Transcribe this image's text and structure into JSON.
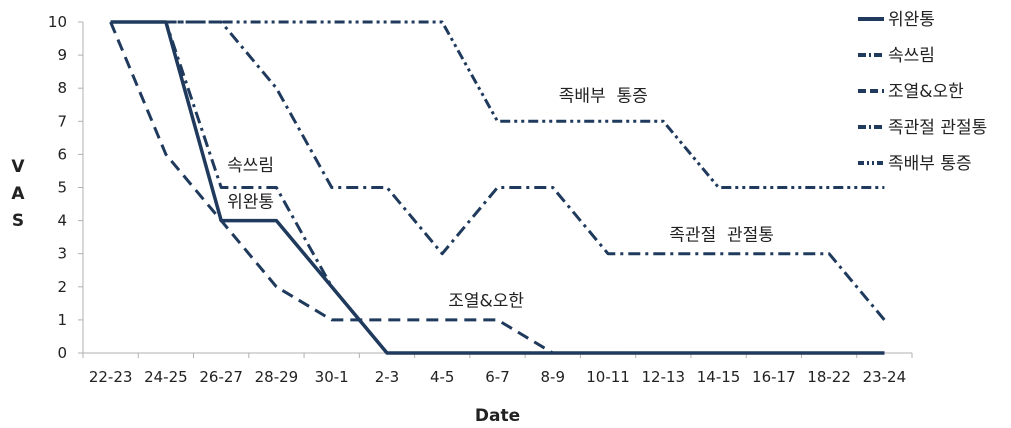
{
  "chart_data": {
    "type": "line",
    "xlabel": "Date",
    "ylabel": "V A S",
    "ylim": [
      0,
      10
    ],
    "yticks": [
      0,
      1,
      2,
      3,
      4,
      5,
      6,
      7,
      8,
      9,
      10
    ],
    "categories": [
      "22-23",
      "24-25",
      "26-27",
      "28-29",
      "30-1",
      "2-3",
      "4-5",
      "6-7",
      "8-9",
      "10-11",
      "12-13",
      "14-15",
      "16-17",
      "18-22",
      "23-24"
    ],
    "grid": false,
    "legend_position": "right",
    "color": "#1f3a5c",
    "series": [
      {
        "name": "위완통",
        "style": "solid",
        "values": [
          10,
          10,
          4,
          4,
          2,
          0,
          0,
          0,
          0,
          0,
          0,
          0,
          0,
          0,
          0
        ]
      },
      {
        "name": "속쓰림",
        "style": "dashdot",
        "values": [
          10,
          10,
          5,
          5,
          2,
          0,
          0,
          0,
          0,
          0,
          0,
          0,
          0,
          0,
          0
        ]
      },
      {
        "name": "조열&오한",
        "style": "dashed",
        "values": [
          10,
          6,
          4,
          2,
          1,
          1,
          1,
          1,
          0,
          0,
          0,
          0,
          0,
          0,
          0
        ]
      },
      {
        "name": "족관절 관절통",
        "style": "dashdot",
        "values": [
          10,
          10,
          10,
          8,
          5,
          5,
          3,
          5,
          5,
          3,
          3,
          3,
          3,
          3,
          1
        ]
      },
      {
        "name": "족배부 통증",
        "style": "dashdotdot",
        "values": [
          10,
          10,
          10,
          10,
          10,
          10,
          10,
          7,
          7,
          7,
          7,
          5,
          5,
          5,
          5
        ]
      }
    ],
    "legend_entries": [
      "위완통",
      "속쓰림",
      "조열&오한",
      "족관절 관절통",
      "족배부 통증"
    ],
    "annotations": [
      {
        "text": "족배부  통증",
        "x": "8-9",
        "y": 7.6
      },
      {
        "text": "속쓰림",
        "x": "26-27",
        "y": 5.5
      },
      {
        "text": "위완통",
        "x": "26-27",
        "y": 4.4
      },
      {
        "text": "족관절  관절통",
        "x": "12-13",
        "y": 3.4
      },
      {
        "text": "조열&오한",
        "x": "4-5",
        "y": 1.4
      }
    ]
  }
}
